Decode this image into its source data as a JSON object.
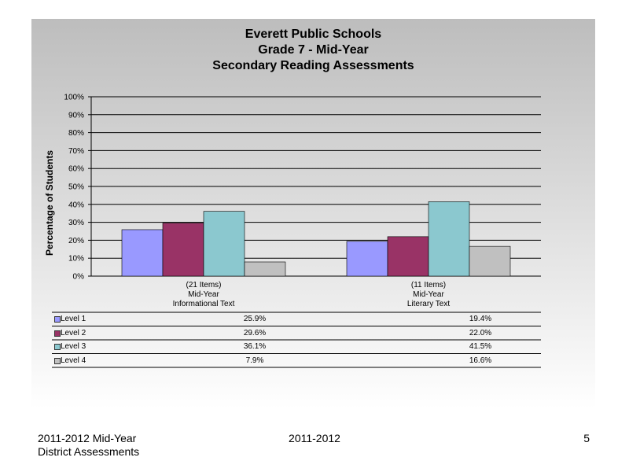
{
  "chart_data": {
    "type": "bar",
    "title_lines": [
      "Everett Public Schools",
      "Grade 7 - Mid-Year",
      "Secondary Reading Assessments"
    ],
    "ylabel": "Percentage of Students",
    "ylim": [
      0,
      100
    ],
    "yticks": [
      "0%",
      "10%",
      "20%",
      "30%",
      "40%",
      "50%",
      "60%",
      "70%",
      "80%",
      "90%",
      "100%"
    ],
    "categories": [
      [
        "(21 Items)",
        "Mid-Year",
        "Informational Text"
      ],
      [
        "(11 Items)",
        "Mid-Year",
        "Literary Text"
      ]
    ],
    "series": [
      {
        "name": "Level 1",
        "color": "#9999ff",
        "values": [
          25.9,
          19.4
        ],
        "labels": [
          "25.9%",
          "19.4%"
        ]
      },
      {
        "name": "Level 2",
        "color": "#993366",
        "values": [
          29.6,
          22.0
        ],
        "labels": [
          "29.6%",
          "22.0%"
        ]
      },
      {
        "name": "Level 3",
        "color": "#8bc8cf",
        "values": [
          36.1,
          41.5
        ],
        "labels": [
          "36.1%",
          "41.5%"
        ]
      },
      {
        "name": "Level 4",
        "color": "#c0c0c0",
        "values": [
          7.9,
          16.6
        ],
        "labels": [
          "7.9%",
          "16.6%"
        ]
      }
    ],
    "grid": true,
    "legend": "data table below chart"
  },
  "footer": {
    "left_line1": "2011-2012  Mid-Year",
    "left_line2": "District Assessments",
    "center": "2011-2012",
    "page_number": "5"
  }
}
